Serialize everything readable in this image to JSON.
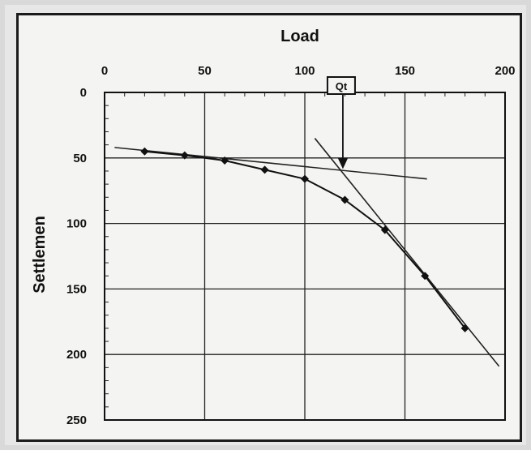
{
  "chart_data": {
    "type": "line",
    "xlabel": "Load",
    "ylabel": "Settlemen",
    "xlim": [
      0,
      200
    ],
    "ylim": [
      0,
      250
    ],
    "x_axis_position": "top",
    "y_axis_inverted": true,
    "grid": true,
    "x_ticks": [
      "0",
      "50",
      "100",
      "150",
      "200"
    ],
    "y_ticks": [
      "0",
      "50",
      "100",
      "150",
      "200",
      "250"
    ],
    "series": [
      {
        "style": "line-with-diamond-markers",
        "points": [
          {
            "x": 20,
            "y": 45
          },
          {
            "x": 40,
            "y": 48
          },
          {
            "x": 60,
            "y": 52
          },
          {
            "x": 80,
            "y": 59
          },
          {
            "x": 100,
            "y": 66
          },
          {
            "x": 120,
            "y": 82
          },
          {
            "x": 140,
            "y": 105
          },
          {
            "x": 160,
            "y": 140
          },
          {
            "x": 180,
            "y": 180
          }
        ]
      }
    ],
    "tangent_lines": [
      {
        "name": "initial tangent",
        "x1": 5,
        "y1": 42,
        "x2": 161,
        "y2": 66
      },
      {
        "name": "final tangent",
        "x1": 105,
        "y1": 35,
        "x2": 197,
        "y2": 209
      }
    ],
    "annotation": {
      "label": "Qt",
      "x": 119,
      "y": 59
    }
  }
}
